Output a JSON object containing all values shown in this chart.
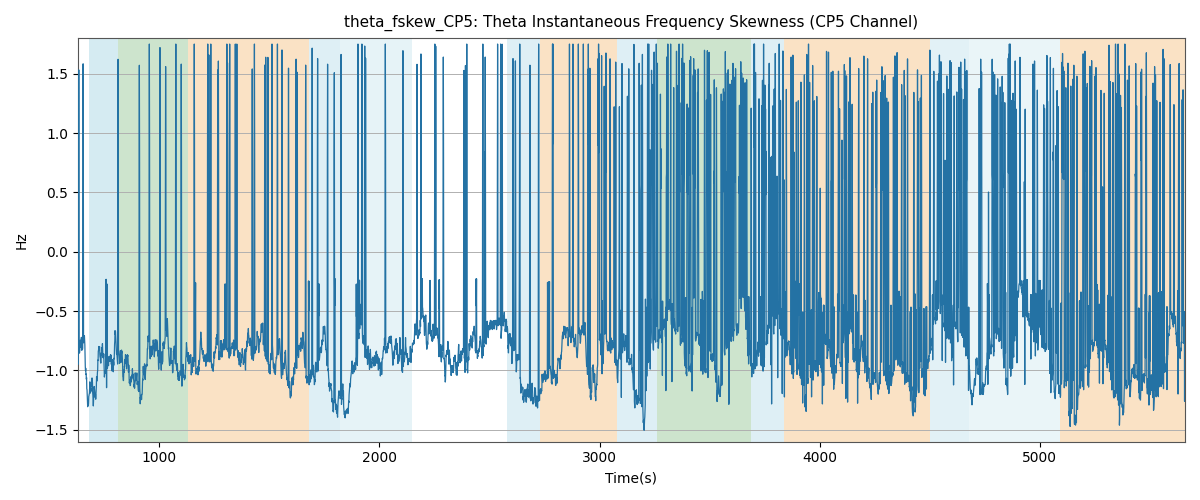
{
  "title": "theta_fskew_CP5: Theta Instantaneous Frequency Skewness (CP5 Channel)",
  "xlabel": "Time(s)",
  "ylabel": "Hz",
  "xlim": [
    630,
    5660
  ],
  "ylim": [
    -1.6,
    1.8
  ],
  "line_color": "#2472a4",
  "line_width": 0.9,
  "bg_color": "#ffffff",
  "grid_color": "#b0b0b0",
  "bands": [
    {
      "xmin": 680,
      "xmax": 810,
      "color": "#add8e6",
      "alpha": 0.5
    },
    {
      "xmin": 810,
      "xmax": 1130,
      "color": "#90c490",
      "alpha": 0.45
    },
    {
      "xmin": 1130,
      "xmax": 1680,
      "color": "#f5c080",
      "alpha": 0.45
    },
    {
      "xmin": 1680,
      "xmax": 1820,
      "color": "#add8e6",
      "alpha": 0.4
    },
    {
      "xmin": 1820,
      "xmax": 2150,
      "color": "#add8e6",
      "alpha": 0.3
    },
    {
      "xmin": 2150,
      "xmax": 2580,
      "color": "#f5c080",
      "alpha": 0.0
    },
    {
      "xmin": 2580,
      "xmax": 2730,
      "color": "#add8e6",
      "alpha": 0.4
    },
    {
      "xmin": 2730,
      "xmax": 3080,
      "color": "#f5c080",
      "alpha": 0.45
    },
    {
      "xmin": 3080,
      "xmax": 3260,
      "color": "#add8e6",
      "alpha": 0.4
    },
    {
      "xmin": 3260,
      "xmax": 3690,
      "color": "#90c490",
      "alpha": 0.45
    },
    {
      "xmin": 3690,
      "xmax": 3840,
      "color": "#add8e6",
      "alpha": 0.4
    },
    {
      "xmin": 3840,
      "xmax": 4500,
      "color": "#f5c080",
      "alpha": 0.45
    },
    {
      "xmin": 4500,
      "xmax": 4680,
      "color": "#add8e6",
      "alpha": 0.35
    },
    {
      "xmin": 4680,
      "xmax": 5090,
      "color": "#add8e6",
      "alpha": 0.25
    },
    {
      "xmin": 5090,
      "xmax": 5660,
      "color": "#f5c080",
      "alpha": 0.45
    }
  ],
  "seed": 12345,
  "t_start": 630,
  "t_end": 5660,
  "n_points": 5100
}
